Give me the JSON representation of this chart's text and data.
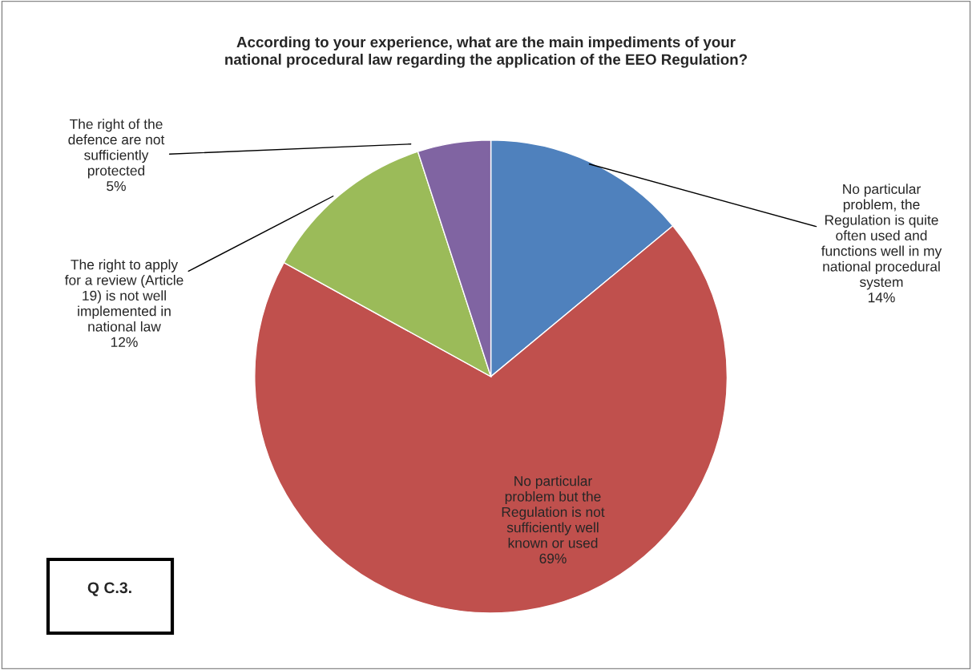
{
  "chart_data": {
    "type": "pie",
    "title": "According to your experience, what are the main impediments of your\nnational procedural law regarding the application of the EEO Regulation?",
    "categories": [
      "No particular\nproblem, the\nRegulation is quite\noften used and\nfunctions well in my\nnational procedural\nsystem",
      "No particular\nproblem but the\nRegulation is not\nsufficiently well\nknown or used",
      "The right to apply\nfor a review (Article\n19) is not well\nimplemented in\nnational law",
      "The right of the\ndefence are not\nsufficiently\nprotected"
    ],
    "values": [
      14,
      69,
      12,
      5
    ],
    "value_labels": [
      "14%",
      "69%",
      "12%",
      "5%"
    ],
    "colors": [
      "#4f81bd",
      "#c0504d",
      "#9bbb59",
      "#8064a2"
    ],
    "annotations": [
      "Q C.3."
    ]
  }
}
